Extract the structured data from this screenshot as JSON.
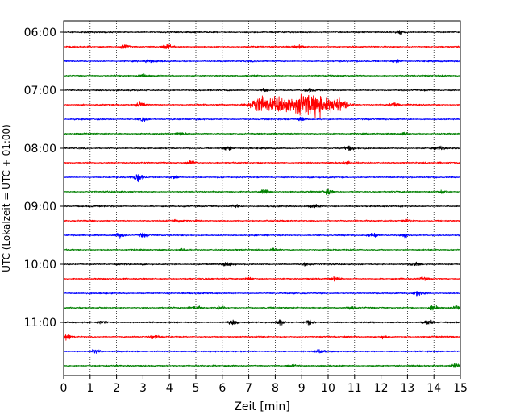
{
  "chart_data": {
    "type": "line",
    "xlabel": "Zeit  [min]",
    "ylabel": "UTC (Lokalzeit = UTC + 01:00)",
    "xlim": [
      0,
      15
    ],
    "x_ticks": [
      0,
      1,
      2,
      3,
      4,
      5,
      6,
      7,
      8,
      9,
      10,
      11,
      12,
      13,
      14,
      15
    ],
    "x_tick_labels": [
      "0",
      "1",
      "2",
      "3",
      "4",
      "5",
      "6",
      "7",
      "8",
      "9",
      "10",
      "11",
      "12",
      "13",
      "14",
      "15"
    ],
    "y_tick_labels": [
      "06:00",
      "07:00",
      "08:00",
      "09:00",
      "10:00",
      "11:00"
    ],
    "vertical_grid": true,
    "grid_style": "dotted",
    "colors_cycle": [
      "#000000",
      "#ff0000",
      "#0000ff",
      "#008000"
    ],
    "traces": [
      {
        "start": "06:00",
        "color": "#000000",
        "events": [
          {
            "t": 12.7,
            "amp": 1.0
          }
        ]
      },
      {
        "start": "06:15",
        "color": "#ff0000",
        "events": [
          {
            "t": 2.3,
            "amp": 1.4
          },
          {
            "t": 3.9,
            "amp": 1.8
          },
          {
            "t": 8.9,
            "amp": 1.3
          }
        ]
      },
      {
        "start": "06:30",
        "color": "#0000ff",
        "events": [
          {
            "t": 3.2,
            "amp": 1.0
          },
          {
            "t": 12.6,
            "amp": 1.0
          }
        ]
      },
      {
        "start": "06:45",
        "color": "#008000",
        "events": [
          {
            "t": 3.0,
            "amp": 0.9
          }
        ]
      },
      {
        "start": "07:00",
        "color": "#000000",
        "events": [
          {
            "t": 7.6,
            "amp": 1.1
          },
          {
            "t": 9.3,
            "amp": 1.0
          }
        ]
      },
      {
        "start": "07:15",
        "color": "#ff0000",
        "events": [
          {
            "t": 2.9,
            "amp": 1.6
          },
          {
            "t": 7.4,
            "amp": 5.5
          },
          {
            "t": 8.2,
            "amp": 5.0
          },
          {
            "t": 9.0,
            "amp": 6.0
          },
          {
            "t": 9.6,
            "amp": 6.5
          },
          {
            "t": 10.3,
            "amp": 5.0
          },
          {
            "t": 12.5,
            "amp": 1.6
          }
        ]
      },
      {
        "start": "07:30",
        "color": "#0000ff",
        "events": [
          {
            "t": 3.0,
            "amp": 1.2
          },
          {
            "t": 9.0,
            "amp": 1.4
          }
        ]
      },
      {
        "start": "07:45",
        "color": "#008000",
        "events": [
          {
            "t": 4.4,
            "amp": 1.0
          },
          {
            "t": 12.9,
            "amp": 1.0
          }
        ]
      },
      {
        "start": "08:00",
        "color": "#000000",
        "events": [
          {
            "t": 6.2,
            "amp": 1.6
          },
          {
            "t": 10.8,
            "amp": 1.2
          },
          {
            "t": 14.2,
            "amp": 1.6
          }
        ]
      },
      {
        "start": "08:15",
        "color": "#ff0000",
        "events": [
          {
            "t": 4.8,
            "amp": 1.3
          },
          {
            "t": 10.7,
            "amp": 1.0
          }
        ]
      },
      {
        "start": "08:30",
        "color": "#0000ff",
        "events": [
          {
            "t": 2.8,
            "amp": 2.8
          },
          {
            "t": 4.2,
            "amp": 1.0
          }
        ]
      },
      {
        "start": "08:45",
        "color": "#008000",
        "events": [
          {
            "t": 7.6,
            "amp": 1.6
          },
          {
            "t": 10.0,
            "amp": 1.6
          },
          {
            "t": 14.3,
            "amp": 1.0
          }
        ]
      },
      {
        "start": "09:00",
        "color": "#000000",
        "events": [
          {
            "t": 6.5,
            "amp": 1.0
          },
          {
            "t": 9.5,
            "amp": 1.0
          }
        ]
      },
      {
        "start": "09:15",
        "color": "#ff0000",
        "events": [
          {
            "t": 4.3,
            "amp": 1.0
          },
          {
            "t": 13.0,
            "amp": 0.9
          }
        ]
      },
      {
        "start": "09:30",
        "color": "#0000ff",
        "events": [
          {
            "t": 2.1,
            "amp": 1.6
          },
          {
            "t": 3.0,
            "amp": 1.3
          },
          {
            "t": 11.7,
            "amp": 1.4
          },
          {
            "t": 12.9,
            "amp": 1.2
          }
        ]
      },
      {
        "start": "09:45",
        "color": "#008000",
        "events": [
          {
            "t": 4.5,
            "amp": 0.8
          },
          {
            "t": 8.0,
            "amp": 0.8
          }
        ]
      },
      {
        "start": "10:00",
        "color": "#000000",
        "events": [
          {
            "t": 6.2,
            "amp": 1.4
          },
          {
            "t": 9.2,
            "amp": 1.2
          },
          {
            "t": 13.3,
            "amp": 1.2
          }
        ]
      },
      {
        "start": "10:15",
        "color": "#ff0000",
        "events": [
          {
            "t": 7.0,
            "amp": 1.0
          },
          {
            "t": 10.3,
            "amp": 1.4
          },
          {
            "t": 13.6,
            "amp": 0.9
          }
        ]
      },
      {
        "start": "10:30",
        "color": "#0000ff",
        "events": [
          {
            "t": 13.4,
            "amp": 1.4
          }
        ]
      },
      {
        "start": "10:45",
        "color": "#008000",
        "events": [
          {
            "t": 5.0,
            "amp": 1.2
          },
          {
            "t": 5.9,
            "amp": 1.4
          },
          {
            "t": 10.9,
            "amp": 1.0
          },
          {
            "t": 14.0,
            "amp": 1.8
          },
          {
            "t": 14.9,
            "amp": 1.2
          }
        ]
      },
      {
        "start": "11:00",
        "color": "#000000",
        "events": [
          {
            "t": 1.5,
            "amp": 1.0
          },
          {
            "t": 6.4,
            "amp": 1.6
          },
          {
            "t": 8.2,
            "amp": 2.0
          },
          {
            "t": 9.3,
            "amp": 1.6
          },
          {
            "t": 13.8,
            "amp": 1.6
          }
        ]
      },
      {
        "start": "11:15",
        "color": "#ff0000",
        "events": [
          {
            "t": 0.1,
            "amp": 2.0
          },
          {
            "t": 3.4,
            "amp": 1.4
          },
          {
            "t": 12.1,
            "amp": 1.0
          }
        ]
      },
      {
        "start": "11:30",
        "color": "#0000ff",
        "events": [
          {
            "t": 1.2,
            "amp": 1.2
          },
          {
            "t": 9.7,
            "amp": 1.0
          }
        ]
      },
      {
        "start": "11:45",
        "color": "#008000",
        "events": [
          {
            "t": 8.6,
            "amp": 1.0
          },
          {
            "t": 14.8,
            "amp": 1.6
          }
        ]
      }
    ]
  }
}
